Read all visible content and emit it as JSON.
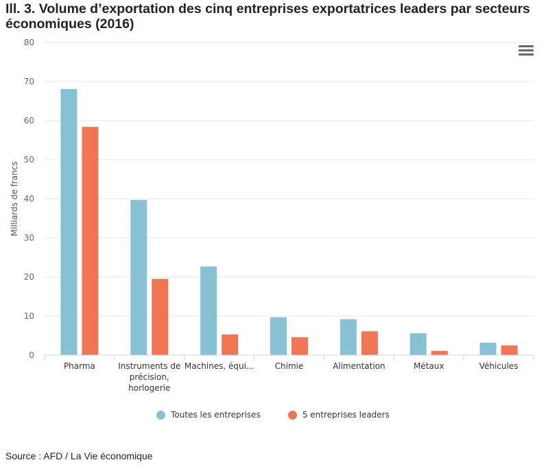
{
  "title": "Ill. 3. Volume d’exportation des cinq entreprises exportatrices leaders par secteurs économiques (2016)",
  "source": "Source : AFD / La Vie économique",
  "menu_icon": "hamburger-menu-icon",
  "colors": {
    "series1": "#88c1d4",
    "series2": "#f07553",
    "grid": "#e6e6e6"
  },
  "chart_data": {
    "type": "bar",
    "ylabel": "Milliards de francs",
    "xlabel": "",
    "ylim": [
      0,
      80
    ],
    "yticks": [
      "0",
      "10",
      "20",
      "30",
      "40",
      "50",
      "60",
      "70",
      "80"
    ],
    "grid": true,
    "legend_position": "bottom",
    "categories": [
      [
        "Pharma"
      ],
      [
        "Instruments de",
        "précision,",
        "horlogerie"
      ],
      [
        "Machines, équi..."
      ],
      [
        "Chimie"
      ],
      [
        "Alimentation"
      ],
      [
        "Métaux"
      ],
      [
        "Véhicules"
      ]
    ],
    "series": [
      {
        "name": "Toutes les entreprises",
        "values": [
          68.1,
          39.7,
          22.7,
          9.7,
          9.2,
          5.6,
          3.2
        ]
      },
      {
        "name": "5 entreprises leaders",
        "values": [
          58.4,
          19.5,
          5.3,
          4.6,
          6.1,
          1.1,
          2.5
        ]
      }
    ]
  }
}
